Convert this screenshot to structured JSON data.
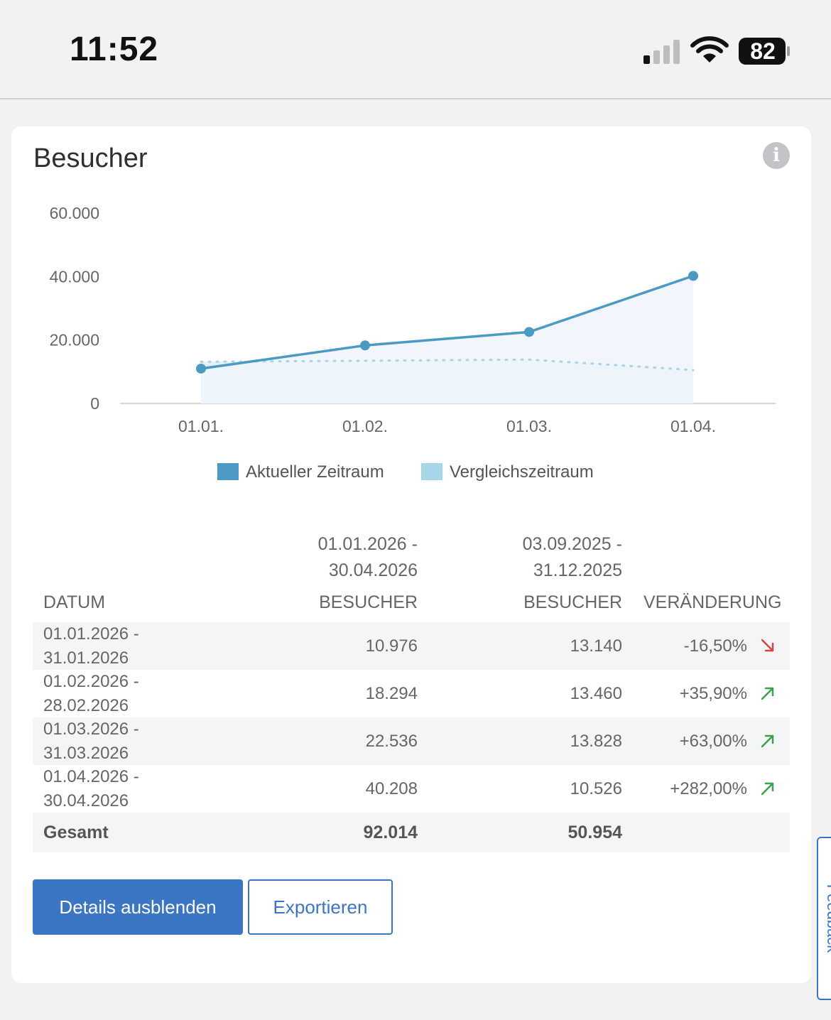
{
  "status_bar": {
    "time": "11:52",
    "battery": "82"
  },
  "card": {
    "title": "Besucher"
  },
  "chart_data": {
    "type": "area",
    "categories": [
      "01.01.",
      "01.02.",
      "01.03.",
      "01.04."
    ],
    "y_ticks": [
      "60.000",
      "40.000",
      "20.000",
      "0"
    ],
    "ylim": [
      0,
      60000
    ],
    "series": [
      {
        "name": "Aktueller Zeitraum",
        "values": [
          10976,
          18294,
          22536,
          40208
        ],
        "color": "#4a9ac4"
      },
      {
        "name": "Vergleichszeitraum",
        "values": [
          13140,
          13460,
          13828,
          10526
        ],
        "color": "#a8d4e8"
      }
    ],
    "legend": "bottom",
    "grid": false
  },
  "table": {
    "period_current": [
      "01.01.2026 -",
      "30.04.2026"
    ],
    "period_compare": [
      "03.09.2025 -",
      "31.12.2025"
    ],
    "headers": {
      "date": "DATUM",
      "visitors_current": "BESUCHER",
      "visitors_compare": "BESUCHER",
      "change": "VERÄNDERUNG"
    },
    "rows": [
      {
        "date_from": "01.01.2026 -",
        "date_to": "31.01.2026",
        "current": "10.976",
        "compare": "13.140",
        "change": "-16,50%",
        "trend": "down"
      },
      {
        "date_from": "01.02.2026 -",
        "date_to": "28.02.2026",
        "current": "18.294",
        "compare": "13.460",
        "change": "+35,90%",
        "trend": "up"
      },
      {
        "date_from": "01.03.2026 -",
        "date_to": "31.03.2026",
        "current": "22.536",
        "compare": "13.828",
        "change": "+63,00%",
        "trend": "up"
      },
      {
        "date_from": "01.04.2026 -",
        "date_to": "30.04.2026",
        "current": "40.208",
        "compare": "10.526",
        "change": "+282,00%",
        "trend": "up"
      }
    ],
    "total": {
      "label": "Gesamt",
      "current": "92.014",
      "compare": "50.954"
    }
  },
  "buttons": {
    "hide_details": "Details ausblenden",
    "export": "Exportieren"
  },
  "feedback": {
    "label": "Feedback"
  },
  "colors": {
    "primary": "#3a76c4",
    "trend_up": "#3aa34a",
    "trend_down": "#d9443c"
  }
}
